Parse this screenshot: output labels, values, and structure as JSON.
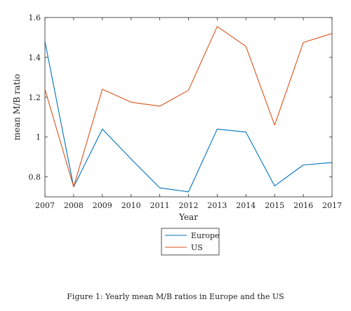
{
  "chart_data": {
    "type": "line",
    "title": "",
    "xlabel": "Year",
    "ylabel": "mean M/B ratio",
    "x": [
      2007,
      2008,
      2009,
      2010,
      2011,
      2012,
      2013,
      2014,
      2015,
      2016,
      2017
    ],
    "xlim": [
      2007,
      2017
    ],
    "ylim": [
      0.7,
      1.6
    ],
    "xticks": [
      2007,
      2008,
      2009,
      2010,
      2011,
      2012,
      2013,
      2014,
      2015,
      2016,
      2017
    ],
    "yticks": [
      0.8,
      1,
      1.2,
      1.4,
      1.6
    ],
    "xtick_labels": [
      "2007",
      "2008",
      "2009",
      "2010",
      "2011",
      "2012",
      "2013",
      "2014",
      "2015",
      "2016",
      "2017"
    ],
    "ytick_labels": [
      "0.8",
      "1",
      "1.2",
      "1.4",
      "1.6"
    ],
    "grid": false,
    "legend_position": "below",
    "series": [
      {
        "name": "Europe",
        "color": "#0072BD",
        "values": [
          1.48,
          0.75,
          1.04,
          0.89,
          0.745,
          0.725,
          1.04,
          1.025,
          0.755,
          0.86,
          0.872
        ]
      },
      {
        "name": "US",
        "color": "#D95319",
        "values": [
          1.24,
          0.75,
          1.24,
          1.175,
          1.155,
          1.235,
          1.555,
          1.455,
          1.06,
          1.475,
          1.52
        ]
      }
    ]
  },
  "caption": "Figure 1: Yearly mean M/B ratios in Europe and the US"
}
